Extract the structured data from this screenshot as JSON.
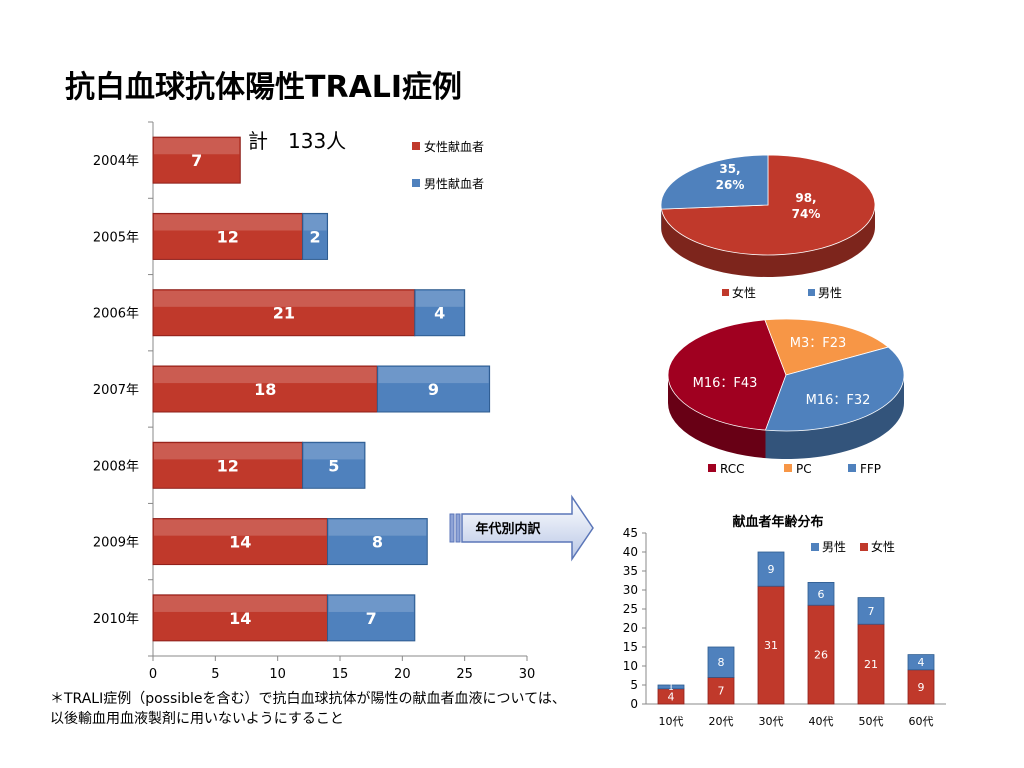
{
  "title": "抗白血球抗体陽性TRALI症例",
  "total_label": "計　133人",
  "footnote": {
    "line1": "＊TRALI症例（possibleを含む）で抗白血球抗体が陽性の献血者血液については、",
    "line2": "以後輸血用血液製剤に用いないようにすること"
  },
  "arrow_label": "年代別内訳",
  "colors": {
    "red": "#c0392b",
    "red_dark": "#8e1f1a",
    "blue": "#4f81bd",
    "blue_dark": "#2d5b8f",
    "orange": "#f79646",
    "rcc": "#a00020"
  },
  "chart_data": [
    {
      "type": "bar",
      "orientation": "horizontal",
      "stacked": true,
      "categories": [
        "2004年",
        "2005年",
        "2006年",
        "2007年",
        "2008年",
        "2009年",
        "2010年"
      ],
      "series": [
        {
          "name": "女性献血者",
          "values": [
            7,
            12,
            21,
            18,
            12,
            14,
            14
          ],
          "color": "#c0392b"
        },
        {
          "name": "男性献血者",
          "values": [
            0,
            2,
            4,
            9,
            5,
            8,
            7
          ],
          "color": "#4f81bd"
        }
      ],
      "xlim": [
        0,
        30
      ],
      "xticks": [
        0,
        5,
        10,
        15,
        20,
        25,
        30
      ],
      "legend": "top-right"
    },
    {
      "type": "pie",
      "labels": [
        "女性",
        "男性"
      ],
      "values": [
        98,
        35
      ],
      "slice_labels": [
        "98,\n74%",
        "35,\n26%"
      ],
      "colors": [
        "#c0392b",
        "#4f81bd"
      ],
      "legend": "bottom"
    },
    {
      "type": "pie",
      "labels": [
        "RCC",
        "PC",
        "FFP"
      ],
      "slice_labels": [
        "M16：F43",
        "M3：F23",
        "M16：F32"
      ],
      "values": [
        59,
        26,
        48
      ],
      "colors": [
        "#a00020",
        "#f79646",
        "#4f81bd"
      ],
      "legend": "bottom"
    },
    {
      "type": "bar",
      "stacked": true,
      "title": "献血者年齢分布",
      "categories": [
        "10代",
        "20代",
        "30代",
        "40代",
        "50代",
        "60代"
      ],
      "series": [
        {
          "name": "女性",
          "values": [
            4,
            7,
            31,
            26,
            21,
            9
          ],
          "color": "#c0392b"
        },
        {
          "name": "男性",
          "values": [
            1,
            8,
            9,
            6,
            7,
            4
          ],
          "color": "#4f81bd"
        }
      ],
      "ylim": [
        0,
        45
      ],
      "yticks": [
        0,
        5,
        10,
        15,
        20,
        25,
        30,
        35,
        40,
        45
      ],
      "legend": "top-right"
    }
  ]
}
